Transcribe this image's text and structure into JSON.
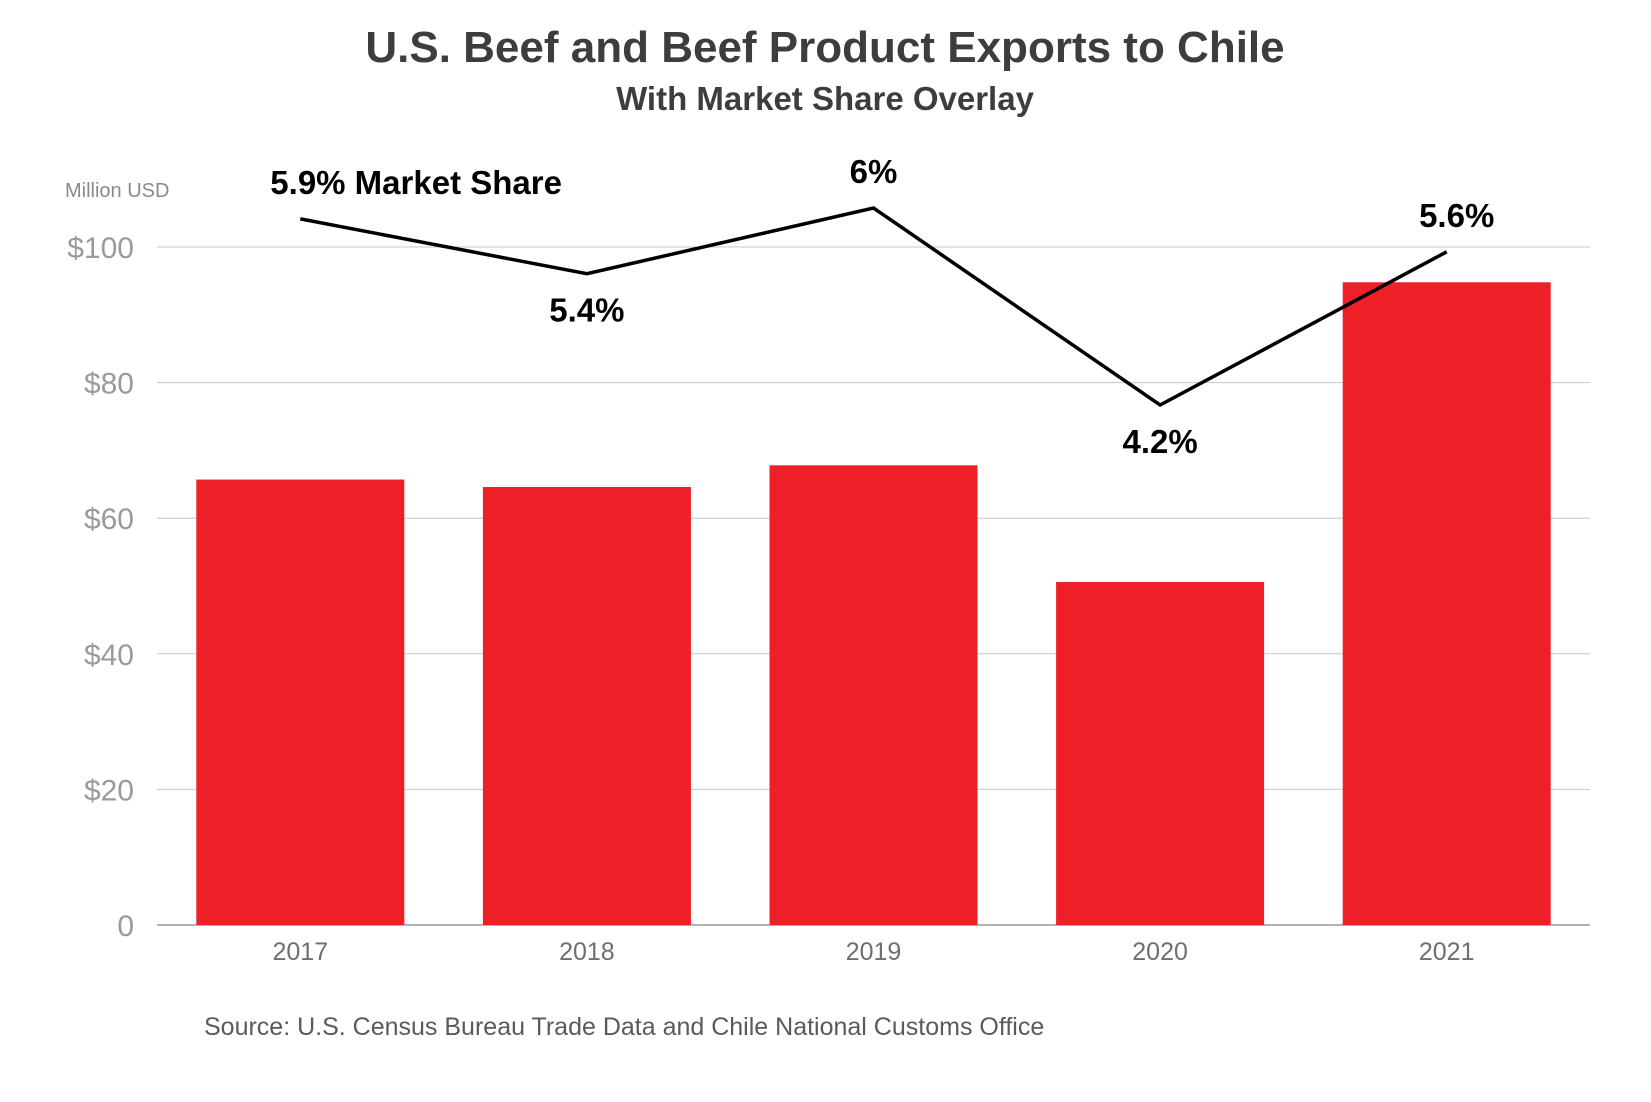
{
  "chart_data": {
    "type": "bar",
    "title": "U.S. Beef and Beef Product Exports to Chile",
    "subtitle": "With Market Share Overlay",
    "ylabel": "Million USD",
    "ylim": [
      0,
      100
    ],
    "yticks": [
      {
        "value": 0,
        "label": "0"
      },
      {
        "value": 20,
        "label": "$20"
      },
      {
        "value": 40,
        "label": "$40"
      },
      {
        "value": 60,
        "label": "$60"
      },
      {
        "value": 80,
        "label": "$80"
      },
      {
        "value": 100,
        "label": "$100"
      }
    ],
    "categories": [
      "2017",
      "2018",
      "2019",
      "2020",
      "2021"
    ],
    "values": [
      65.7,
      64.6,
      67.8,
      50.6,
      94.8
    ],
    "bar_color": "#ee1f26",
    "line_color": "#000000",
    "grid": true,
    "overlay": {
      "type": "line",
      "values": [
        5.9,
        5.4,
        6.0,
        4.2,
        5.6
      ],
      "unit": "%",
      "labels": [
        "5.9% Market Share",
        "5.4%",
        "6%",
        "4.2%",
        "5.6%"
      ],
      "label_positions": [
        "above",
        "below",
        "above",
        "below",
        "above"
      ]
    },
    "source": "Source: U.S. Census Bureau Trade Data and Chile National Customs Office"
  }
}
